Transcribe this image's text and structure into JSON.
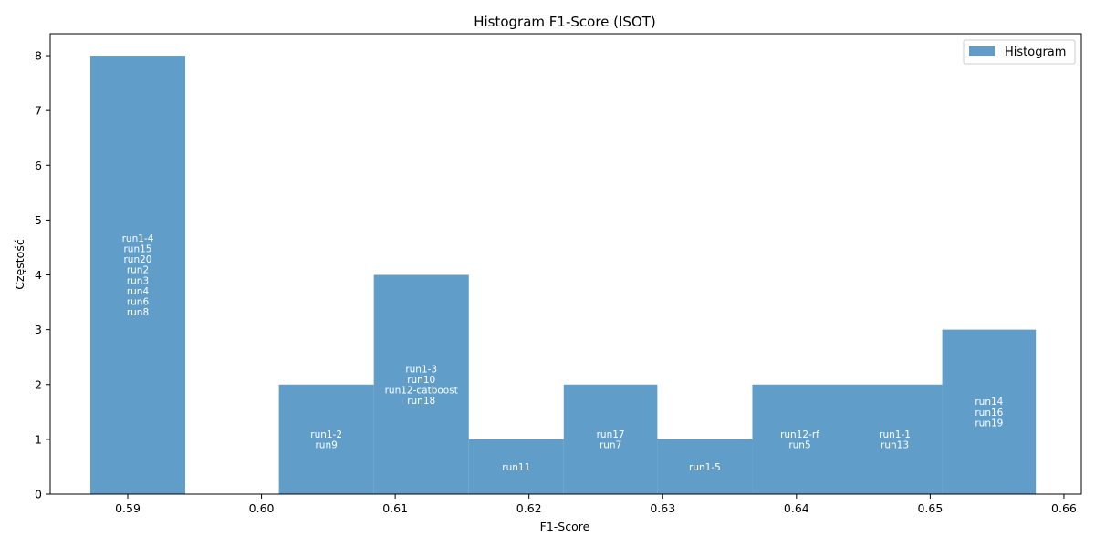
{
  "chart_data": {
    "type": "bar",
    "title": "Histogram F1-Score (ISOT)",
    "xlabel": "F1-Score",
    "ylabel": "Częstość",
    "xlim": [
      0.5842,
      0.6613
    ],
    "ylim": [
      0,
      8.4
    ],
    "x_ticks": [
      0.59,
      0.6,
      0.61,
      0.62,
      0.63,
      0.64,
      0.65,
      0.66
    ],
    "x_tick_labels": [
      "0.59",
      "0.60",
      "0.61",
      "0.62",
      "0.63",
      "0.64",
      "0.65",
      "0.66"
    ],
    "y_ticks": [
      0,
      1,
      2,
      3,
      4,
      5,
      6,
      7,
      8
    ],
    "y_tick_labels": [
      "0",
      "1",
      "2",
      "3",
      "4",
      "5",
      "6",
      "7",
      "8"
    ],
    "bar_color": "#4a90c2",
    "bar_opacity": 0.88,
    "grid": false,
    "legend": {
      "placement": "top-right",
      "entries": [
        "Histogram"
      ]
    },
    "bins": [
      {
        "x0": 0.5872,
        "x1": 0.5943,
        "count": 8,
        "runs": [
          "run1-4",
          "run15",
          "run20",
          "run2",
          "run3",
          "run4",
          "run6",
          "run8"
        ]
      },
      {
        "x0": 0.5943,
        "x1": 0.6013,
        "count": 0,
        "runs": []
      },
      {
        "x0": 0.6013,
        "x1": 0.6084,
        "count": 2,
        "runs": [
          "run1-2",
          "run9"
        ]
      },
      {
        "x0": 0.6084,
        "x1": 0.6155,
        "count": 4,
        "runs": [
          "run1-3",
          "run10",
          "run12-catboost",
          "run18"
        ]
      },
      {
        "x0": 0.6155,
        "x1": 0.6226,
        "count": 1,
        "runs": [
          "run11"
        ]
      },
      {
        "x0": 0.6226,
        "x1": 0.6296,
        "count": 2,
        "runs": [
          "run17",
          "run7"
        ]
      },
      {
        "x0": 0.6296,
        "x1": 0.6367,
        "count": 1,
        "runs": [
          "run1-5"
        ]
      },
      {
        "x0": 0.6367,
        "x1": 0.6438,
        "count": 2,
        "runs": [
          "run12-rf",
          "run5"
        ]
      },
      {
        "x0": 0.6438,
        "x1": 0.6509,
        "count": 2,
        "runs": [
          "run1-1",
          "run13"
        ]
      },
      {
        "x0": 0.6509,
        "x1": 0.6579,
        "count": 3,
        "runs": [
          "run14",
          "run16",
          "run19"
        ]
      }
    ]
  }
}
